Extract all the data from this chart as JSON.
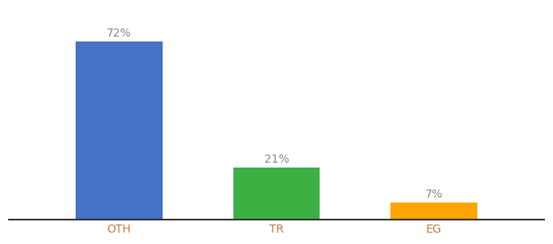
{
  "categories": [
    "OTH",
    "TR",
    "EG"
  ],
  "values": [
    72,
    21,
    7
  ],
  "labels": [
    "72%",
    "21%",
    "7%"
  ],
  "bar_colors": [
    "#4472C4",
    "#3CB043",
    "#FFA500"
  ],
  "background_color": "#ffffff",
  "ylim": [
    0,
    85
  ],
  "xlabel": "",
  "ylabel": "",
  "label_fontsize": 10,
  "tick_fontsize": 10,
  "tick_color": "#c47b3c",
  "label_color": "#888888",
  "bar_width": 0.55
}
